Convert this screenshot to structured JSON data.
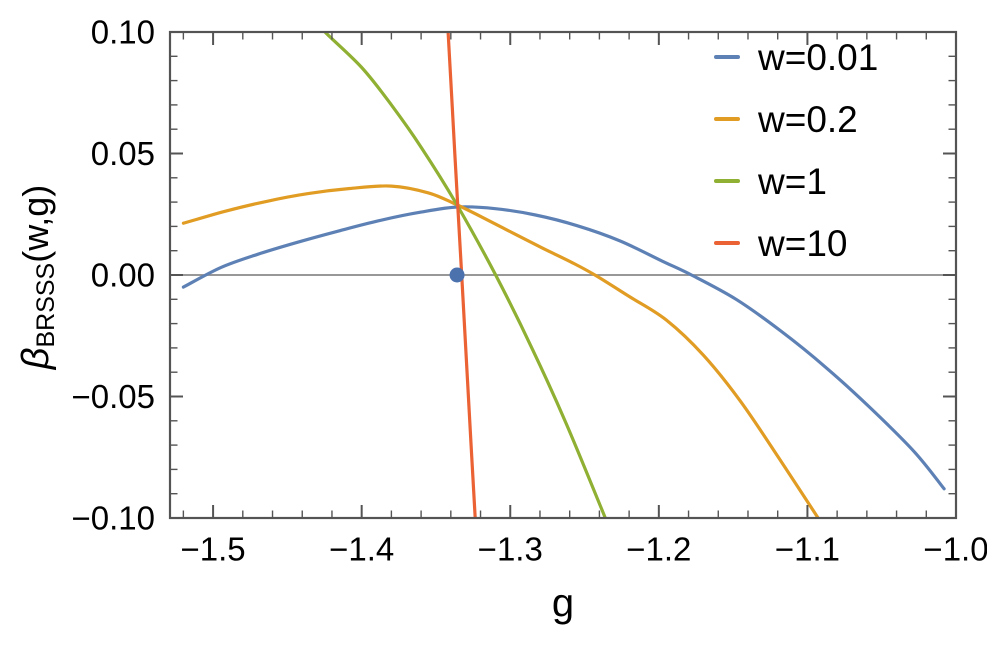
{
  "figure": {
    "background": "#ffffff",
    "frame_color": "#545454",
    "tick_color": "#545454",
    "text_color": "#000000",
    "zero_line_color": "#8a8a8a"
  },
  "chart_data": {
    "type": "line",
    "title": "",
    "xlabel": "g",
    "ylabel": "β_BRSSS(w,g)",
    "ylabel_parts": {
      "symbol": "β",
      "subscript": "BRSSS",
      "suffix": "(w,g)"
    },
    "xlim": [
      -1.529,
      -1.0
    ],
    "ylim": [
      -0.1,
      0.1
    ],
    "grid": false,
    "zero_line": true,
    "x_ticks": {
      "values": [
        -1.5,
        -1.4,
        -1.3,
        -1.2,
        -1.1,
        -1.0
      ],
      "labels": [
        "−1.5",
        "−1.4",
        "−1.3",
        "−1.2",
        "−1.1",
        "−1.0"
      ],
      "minor_step": 0.02
    },
    "y_ticks": {
      "values": [
        0.1,
        0.05,
        0.0,
        -0.05,
        -0.1
      ],
      "labels": [
        "0.10",
        "0.05",
        "0.00",
        "−0.05",
        "−0.10"
      ],
      "minor_step": 0.01
    },
    "legend": {
      "position": "inside top-right"
    },
    "series": [
      {
        "label": "w=0.01",
        "color": "#5e81b5",
        "points": [
          [
            -1.52,
            -0.005
          ],
          [
            -1.495,
            0.003
          ],
          [
            -1.47,
            0.0085
          ],
          [
            -1.443,
            0.0135
          ],
          [
            -1.415,
            0.0182
          ],
          [
            -1.388,
            0.0224
          ],
          [
            -1.36,
            0.0259
          ],
          [
            -1.335,
            0.028
          ],
          [
            -1.31,
            0.0273
          ],
          [
            -1.283,
            0.0247
          ],
          [
            -1.255,
            0.0203
          ],
          [
            -1.226,
            0.014
          ],
          [
            -1.198,
            0.0058
          ],
          [
            -1.178,
            0.0
          ],
          [
            -1.148,
            -0.01
          ],
          [
            -1.118,
            -0.023
          ],
          [
            -1.088,
            -0.0378
          ],
          [
            -1.058,
            -0.0545
          ],
          [
            -1.028,
            -0.0728
          ],
          [
            -1.008,
            -0.088
          ]
        ]
      },
      {
        "label": "w=0.2",
        "color": "#e19c24",
        "points": [
          [
            -1.52,
            0.0213
          ],
          [
            -1.492,
            0.0262
          ],
          [
            -1.464,
            0.0303
          ],
          [
            -1.436,
            0.0335
          ],
          [
            -1.408,
            0.0356
          ],
          [
            -1.38,
            0.0366
          ],
          [
            -1.355,
            0.0338
          ],
          [
            -1.337,
            0.0292
          ],
          [
            -1.318,
            0.0235
          ],
          [
            -1.298,
            0.0172
          ],
          [
            -1.278,
            0.011
          ],
          [
            -1.258,
            0.005
          ],
          [
            -1.243,
            0.0
          ],
          [
            -1.22,
            -0.0088
          ],
          [
            -1.195,
            -0.0185
          ],
          [
            -1.17,
            -0.033
          ],
          [
            -1.145,
            -0.052
          ],
          [
            -1.119,
            -0.0755
          ],
          [
            -1.088,
            -0.1045
          ]
        ]
      },
      {
        "label": "w=1",
        "color": "#8fb032",
        "points": [
          [
            -1.4307,
            0.105
          ],
          [
            -1.4247,
            0.1
          ],
          [
            -1.4,
            0.0854
          ],
          [
            -1.38,
            0.07
          ],
          [
            -1.36,
            0.0526
          ],
          [
            -1.336,
            0.029
          ],
          [
            -1.31,
            0.0002
          ],
          [
            -1.285,
            -0.0306
          ],
          [
            -1.262,
            -0.0616
          ],
          [
            -1.236,
            -0.1
          ],
          [
            -1.2326,
            -0.105
          ]
        ]
      },
      {
        "label": "w=10",
        "color": "#eb6235",
        "points": [
          [
            -1.3422,
            0.105
          ],
          [
            -1.3418,
            0.1
          ],
          [
            -1.3373,
            0.05
          ],
          [
            -1.3327,
            0.0
          ],
          [
            -1.3282,
            -0.05
          ],
          [
            -1.3236,
            -0.1
          ],
          [
            -1.3232,
            -0.105
          ]
        ]
      }
    ],
    "marker_point": {
      "x": -1.3358,
      "y": 0.0,
      "color": "#4c72ae",
      "radius_px": 7.5
    }
  }
}
